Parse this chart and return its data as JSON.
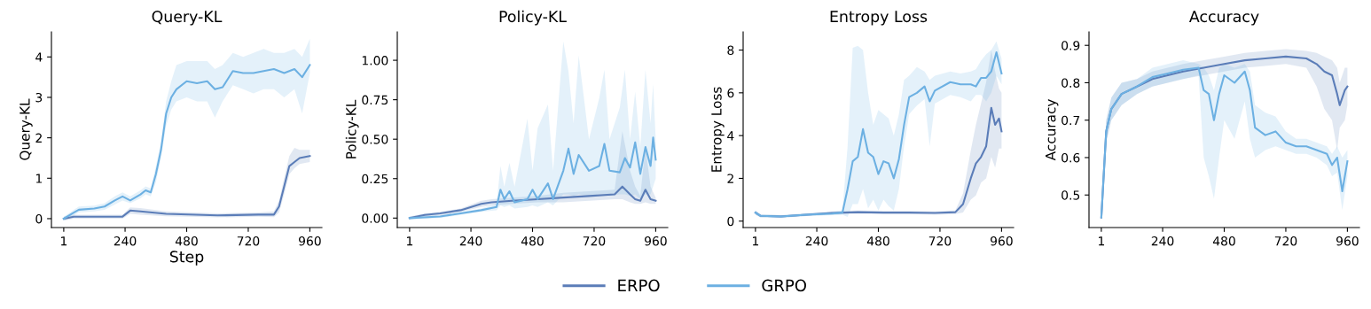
{
  "chart_data": [
    {
      "type": "line",
      "title": "Query-KL",
      "xlabel": "Step",
      "ylabel": "Query-KL",
      "legend": "bottom",
      "xlim": [
        -47,
        1007
      ],
      "xticks": [
        1,
        240,
        480,
        720,
        960
      ],
      "ylim": [
        -0.22,
        4.62
      ],
      "yticks": [
        0,
        1,
        2,
        3,
        4
      ],
      "series": [
        {
          "name": "ERPO",
          "color": "#5b7db8",
          "x": [
            1,
            40,
            200,
            230,
            260,
            300,
            400,
            600,
            760,
            820,
            840,
            860,
            880,
            900,
            920,
            960
          ],
          "values": [
            0,
            0.05,
            0.05,
            0.05,
            0.2,
            0.18,
            0.12,
            0.08,
            0.1,
            0.1,
            0.3,
            0.8,
            1.3,
            1.4,
            1.5,
            1.55
          ],
          "lower": [
            -0.05,
            0,
            0,
            0,
            0.12,
            0.1,
            0.06,
            0.03,
            0.05,
            0.04,
            0.15,
            0.6,
            1.1,
            1.25,
            1.35,
            1.4
          ],
          "upper": [
            0.05,
            0.1,
            0.1,
            0.1,
            0.28,
            0.26,
            0.18,
            0.13,
            0.15,
            0.18,
            0.45,
            1.0,
            1.55,
            1.75,
            1.7,
            1.7
          ]
        },
        {
          "name": "GRPO",
          "color": "#6cb0e2",
          "x": [
            1,
            40,
            60,
            120,
            160,
            200,
            230,
            260,
            300,
            320,
            340,
            360,
            380,
            400,
            420,
            440,
            480,
            520,
            560,
            590,
            620,
            660,
            700,
            740,
            780,
            820,
            860,
            900,
            930,
            960
          ],
          "values": [
            0,
            0.15,
            0.22,
            0.25,
            0.3,
            0.45,
            0.55,
            0.45,
            0.6,
            0.7,
            0.65,
            1.1,
            1.7,
            2.6,
            3.0,
            3.2,
            3.4,
            3.35,
            3.4,
            3.2,
            3.25,
            3.65,
            3.6,
            3.6,
            3.65,
            3.7,
            3.6,
            3.7,
            3.5,
            3.8
          ],
          "lower": [
            -0.05,
            0.08,
            0.15,
            0.18,
            0.22,
            0.35,
            0.45,
            0.38,
            0.5,
            0.6,
            0.55,
            0.9,
            1.5,
            2.3,
            2.7,
            2.9,
            3.0,
            2.9,
            2.9,
            2.5,
            2.9,
            3.3,
            3.2,
            3.1,
            3.2,
            3.2,
            3.0,
            3.2,
            2.6,
            3.6
          ],
          "upper": [
            0.05,
            0.22,
            0.3,
            0.32,
            0.38,
            0.55,
            0.65,
            0.55,
            0.7,
            0.8,
            0.75,
            1.3,
            1.9,
            2.9,
            3.4,
            3.8,
            3.9,
            3.9,
            3.9,
            3.7,
            3.8,
            4.1,
            4.0,
            4.1,
            4.2,
            4.1,
            4.1,
            4.2,
            4.0,
            4.45
          ]
        }
      ]
    },
    {
      "type": "line",
      "title": "Policy-KL",
      "ylabel": "Policy-KL",
      "xlim": [
        -47,
        1007
      ],
      "xticks": [
        1,
        240,
        480,
        720,
        960
      ],
      "ylim": [
        -0.06,
        1.18
      ],
      "yticks": [
        {
          "value": 0,
          "label": "0.00"
        },
        {
          "value": 0.25,
          "label": "0.25"
        },
        {
          "value": 0.5,
          "label": "0.50"
        },
        {
          "value": 0.75,
          "label": "0.75"
        },
        {
          "value": 1,
          "label": "1.00"
        }
      ],
      "series": [
        {
          "name": "ERPO",
          "color": "#5b7db8",
          "x": [
            1,
            60,
            120,
            200,
            280,
            320,
            400,
            500,
            600,
            700,
            800,
            830,
            860,
            880,
            900,
            920,
            940,
            960
          ],
          "values": [
            0,
            0.02,
            0.03,
            0.05,
            0.09,
            0.1,
            0.11,
            0.12,
            0.13,
            0.14,
            0.15,
            0.2,
            0.15,
            0.12,
            0.11,
            0.18,
            0.12,
            0.11
          ],
          "lower": [
            -0.01,
            0.01,
            0.02,
            0.04,
            0.07,
            0.08,
            0.09,
            0.1,
            0.1,
            0.11,
            0.12,
            0.12,
            0.1,
            0.09,
            0.09,
            0.1,
            0.09,
            0.09
          ],
          "upper": [
            0.01,
            0.03,
            0.04,
            0.06,
            0.11,
            0.12,
            0.13,
            0.14,
            0.16,
            0.17,
            0.18,
            0.55,
            0.3,
            0.2,
            0.14,
            0.45,
            0.2,
            0.13
          ]
        },
        {
          "name": "GRPO",
          "color": "#6cb0e2",
          "x": [
            1,
            120,
            200,
            280,
            340,
            355,
            370,
            390,
            410,
            460,
            480,
            500,
            540,
            560,
            600,
            620,
            640,
            660,
            700,
            740,
            760,
            780,
            820,
            840,
            860,
            880,
            900,
            920,
            940,
            950,
            960
          ],
          "values": [
            0,
            0.01,
            0.03,
            0.05,
            0.07,
            0.18,
            0.12,
            0.17,
            0.1,
            0.12,
            0.18,
            0.12,
            0.22,
            0.12,
            0.3,
            0.44,
            0.28,
            0.4,
            0.3,
            0.33,
            0.47,
            0.3,
            0.29,
            0.38,
            0.32,
            0.48,
            0.28,
            0.45,
            0.33,
            0.51,
            0.37
          ],
          "lower": [
            -0.01,
            0,
            0.02,
            0.04,
            0.05,
            0.08,
            0.07,
            0.08,
            0.06,
            0.07,
            0.08,
            0.07,
            0.1,
            0.08,
            0.15,
            0.15,
            0.14,
            0.15,
            0.14,
            0.15,
            0.15,
            0.14,
            0.15,
            0.15,
            0.14,
            0.15,
            0.12,
            0.15,
            0.15,
            0.2,
            0.25
          ],
          "upper": [
            0.01,
            0.02,
            0.04,
            0.06,
            0.09,
            0.33,
            0.2,
            0.35,
            0.2,
            0.63,
            0.3,
            0.57,
            0.72,
            0.3,
            1.12,
            0.93,
            0.6,
            1.03,
            0.5,
            0.76,
            0.94,
            0.5,
            0.7,
            0.94,
            0.5,
            0.8,
            0.45,
            0.94,
            0.6,
            0.85,
            0.5
          ]
        }
      ]
    },
    {
      "type": "line",
      "title": "Entropy Loss",
      "ylabel": "Entropy Loss",
      "xlim": [
        -47,
        1007
      ],
      "xticks": [
        1,
        240,
        480,
        720,
        960
      ],
      "ylim": [
        -0.3,
        8.85
      ],
      "yticks": [
        0,
        2,
        4,
        6,
        8
      ],
      "series": [
        {
          "name": "ERPO",
          "color": "#5b7db8",
          "x": [
            1,
            20,
            100,
            200,
            300,
            400,
            500,
            600,
            700,
            780,
            810,
            840,
            860,
            880,
            900,
            920,
            935,
            950,
            960
          ],
          "values": [
            0.4,
            0.25,
            0.22,
            0.3,
            0.38,
            0.42,
            0.4,
            0.4,
            0.38,
            0.42,
            0.8,
            2.0,
            2.7,
            3.0,
            3.5,
            5.3,
            4.5,
            4.8,
            4.2
          ],
          "lower": [
            0.3,
            0.18,
            0.16,
            0.24,
            0.3,
            0.35,
            0.33,
            0.33,
            0.3,
            0.33,
            0.4,
            1.0,
            1.2,
            1.8,
            2.0,
            3.0,
            2.5,
            3.4,
            3.4
          ],
          "upper": [
            0.5,
            0.32,
            0.28,
            0.36,
            0.46,
            0.5,
            0.48,
            0.48,
            0.46,
            0.5,
            1.3,
            3.3,
            4.5,
            5.5,
            6.5,
            8.0,
            7.0,
            6.2,
            6.0
          ]
        },
        {
          "name": "GRPO",
          "color": "#6cb0e2",
          "x": [
            1,
            20,
            100,
            200,
            300,
            340,
            360,
            380,
            400,
            420,
            440,
            460,
            480,
            500,
            520,
            540,
            560,
            580,
            600,
            630,
            660,
            680,
            700,
            760,
            800,
            840,
            860,
            880,
            900,
            920,
            940,
            960
          ],
          "values": [
            0.4,
            0.25,
            0.22,
            0.3,
            0.35,
            0.4,
            1.5,
            2.8,
            3.0,
            4.3,
            3.2,
            3.0,
            2.2,
            2.8,
            2.7,
            2.0,
            2.9,
            4.5,
            5.8,
            6.0,
            6.3,
            5.6,
            6.1,
            6.5,
            6.4,
            6.4,
            6.3,
            6.7,
            6.7,
            7.0,
            7.9,
            6.9
          ],
          "lower": [
            0.3,
            0.18,
            0.16,
            0.24,
            0.28,
            0.3,
            0.2,
            0.8,
            0.8,
            1.5,
            0.6,
            1.0,
            0.5,
            1.0,
            0.7,
            0.5,
            1.5,
            3.5,
            5.0,
            5.4,
            5.7,
            3.5,
            5.5,
            5.9,
            5.8,
            5.6,
            5.9,
            5.9,
            5.6,
            6.0,
            6.8,
            6.4
          ],
          "upper": [
            0.5,
            0.32,
            0.28,
            0.36,
            0.42,
            0.5,
            3.5,
            8.1,
            8.2,
            8.0,
            6.0,
            4.5,
            5.2,
            5.0,
            4.8,
            4.0,
            5.0,
            6.6,
            6.8,
            7.2,
            7.0,
            6.6,
            6.8,
            7.0,
            6.9,
            7.0,
            7.1,
            7.5,
            7.8,
            8.0,
            8.4,
            7.6
          ]
        }
      ]
    },
    {
      "type": "line",
      "title": "Accuracy",
      "ylabel": "Accuracy",
      "xlim": [
        -47,
        1007
      ],
      "xticks": [
        1,
        240,
        480,
        720,
        960
      ],
      "ylim": [
        0.413,
        0.936
      ],
      "yticks": [
        0.5,
        0.6,
        0.7,
        0.8,
        0.9
      ],
      "series": [
        {
          "name": "ERPO",
          "color": "#5b7db8",
          "x": [
            1,
            20,
            40,
            80,
            140,
            200,
            260,
            320,
            400,
            480,
            560,
            640,
            720,
            800,
            840,
            870,
            900,
            920,
            930,
            950,
            960
          ],
          "values": [
            0.44,
            0.67,
            0.73,
            0.77,
            0.79,
            0.81,
            0.82,
            0.83,
            0.84,
            0.85,
            0.86,
            0.865,
            0.87,
            0.865,
            0.85,
            0.83,
            0.82,
            0.77,
            0.74,
            0.78,
            0.79
          ],
          "lower": [
            0.43,
            0.64,
            0.7,
            0.74,
            0.77,
            0.79,
            0.8,
            0.81,
            0.82,
            0.83,
            0.84,
            0.845,
            0.85,
            0.84,
            0.79,
            0.73,
            0.7,
            0.62,
            0.68,
            0.7,
            0.74
          ],
          "upper": [
            0.45,
            0.7,
            0.76,
            0.8,
            0.81,
            0.83,
            0.84,
            0.85,
            0.86,
            0.87,
            0.88,
            0.885,
            0.89,
            0.885,
            0.88,
            0.87,
            0.86,
            0.84,
            0.8,
            0.84,
            0.84
          ]
        },
        {
          "name": "GRPO",
          "color": "#6cb0e2",
          "x": [
            1,
            20,
            40,
            80,
            140,
            200,
            260,
            320,
            380,
            400,
            420,
            440,
            460,
            480,
            520,
            560,
            580,
            600,
            640,
            680,
            720,
            760,
            800,
            840,
            880,
            900,
            920,
            940,
            960
          ],
          "values": [
            0.44,
            0.67,
            0.73,
            0.77,
            0.79,
            0.815,
            0.825,
            0.835,
            0.84,
            0.78,
            0.77,
            0.7,
            0.77,
            0.82,
            0.8,
            0.83,
            0.78,
            0.68,
            0.66,
            0.67,
            0.64,
            0.63,
            0.63,
            0.62,
            0.61,
            0.58,
            0.6,
            0.51,
            0.59
          ],
          "lower": [
            0.43,
            0.64,
            0.7,
            0.74,
            0.77,
            0.79,
            0.8,
            0.81,
            0.82,
            0.6,
            0.55,
            0.49,
            0.6,
            0.7,
            0.65,
            0.75,
            0.65,
            0.6,
            0.62,
            0.63,
            0.62,
            0.61,
            0.61,
            0.6,
            0.58,
            0.55,
            0.56,
            0.46,
            0.55
          ],
          "upper": [
            0.45,
            0.7,
            0.76,
            0.8,
            0.81,
            0.84,
            0.85,
            0.86,
            0.85,
            0.84,
            0.82,
            0.78,
            0.84,
            0.85,
            0.84,
            0.85,
            0.83,
            0.74,
            0.72,
            0.71,
            0.67,
            0.65,
            0.65,
            0.64,
            0.63,
            0.61,
            0.63,
            0.6,
            0.62
          ]
        }
      ]
    }
  ]
}
